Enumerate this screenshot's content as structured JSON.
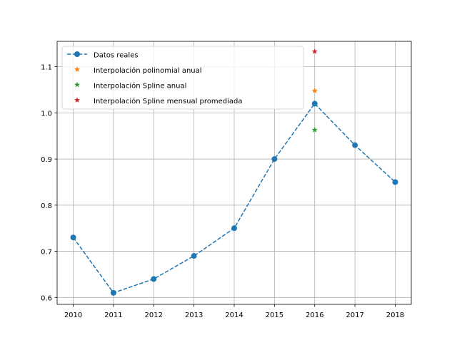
{
  "chart_data": {
    "type": "line",
    "xlim": [
      2009.6,
      2018.4
    ],
    "ylim": [
      0.585,
      1.155
    ],
    "xticks": [
      2010,
      2011,
      2012,
      2013,
      2014,
      2015,
      2016,
      2017,
      2018
    ],
    "xtick_labels": [
      "2010",
      "2011",
      "2012",
      "2013",
      "2014",
      "2015",
      "2016",
      "2017",
      "2018"
    ],
    "yticks": [
      0.6,
      0.7,
      0.8,
      0.9,
      1.0,
      1.1
    ],
    "ytick_labels": [
      "0.6",
      "0.7",
      "0.8",
      "0.9",
      "1.0",
      "1.1"
    ],
    "grid": true,
    "legend_position": "upper-left",
    "series": [
      {
        "name": "Datos reales",
        "style": "dashed-line-circle-markers",
        "color": "#1f77b4",
        "x": [
          2010,
          2011,
          2012,
          2013,
          2014,
          2015,
          2016,
          2017,
          2018
        ],
        "y": [
          0.73,
          0.61,
          0.64,
          0.69,
          0.75,
          0.9,
          1.02,
          0.93,
          0.85
        ]
      },
      {
        "name": "Interpolación polinomial anual",
        "style": "star-marker",
        "color": "#ff7f0e",
        "x": [
          2016
        ],
        "y": [
          1.048
        ]
      },
      {
        "name": "Interpolación Spline anual",
        "style": "star-marker",
        "color": "#2ca02c",
        "x": [
          2016
        ],
        "y": [
          0.963
        ]
      },
      {
        "name": "Interpolación Spline mensual promediada",
        "style": "star-marker",
        "color": "#d62728",
        "x": [
          2016
        ],
        "y": [
          1.133
        ]
      }
    ]
  }
}
